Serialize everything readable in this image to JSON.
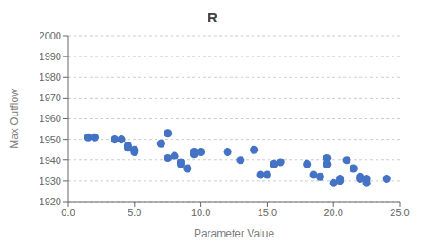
{
  "chart_data": {
    "type": "scatter",
    "title": "R",
    "xlabel": "Parameter Value",
    "ylabel": "Max Outflow",
    "x": [
      1.5,
      2.0,
      3.5,
      4.0,
      4.5,
      4.5,
      5.0,
      5.0,
      7.0,
      7.5,
      7.5,
      8.0,
      8.5,
      8.5,
      9.0,
      9.5,
      9.5,
      10.0,
      12.0,
      13.0,
      14.0,
      14.5,
      15.0,
      15.5,
      16.0,
      18.0,
      18.5,
      19.0,
      19.5,
      19.5,
      20.0,
      20.5,
      20.5,
      21.0,
      21.5,
      22.0,
      22.0,
      22.5,
      22.5,
      24.0
    ],
    "values": [
      1951,
      1951,
      1950,
      1950,
      1947,
      1946,
      1945,
      1944,
      1948,
      1953,
      1941,
      1942,
      1939,
      1938,
      1936,
      1944,
      1943,
      1944,
      1944,
      1940,
      1945,
      1933,
      1933,
      1938,
      1939,
      1938,
      1933,
      1932,
      1941,
      1938,
      1929,
      1931,
      1930,
      1940,
      1936,
      1932,
      1931,
      1931,
      1929,
      1931
    ],
    "color": "#4472C4",
    "xlim": [
      0.0,
      25.0
    ],
    "ylim": [
      1920,
      2000
    ],
    "xticks": [
      {
        "value": 0.0,
        "label": "0.0"
      },
      {
        "value": 5.0,
        "label": "5.0"
      },
      {
        "value": 10.0,
        "label": "10.0"
      },
      {
        "value": 15.0,
        "label": "15.0"
      },
      {
        "value": 20.0,
        "label": "20.0"
      },
      {
        "value": 25.0,
        "label": "25.0"
      }
    ],
    "yticks": [
      1920,
      1930,
      1940,
      1950,
      1960,
      1970,
      1980,
      1990,
      2000
    ],
    "grid": "y"
  }
}
